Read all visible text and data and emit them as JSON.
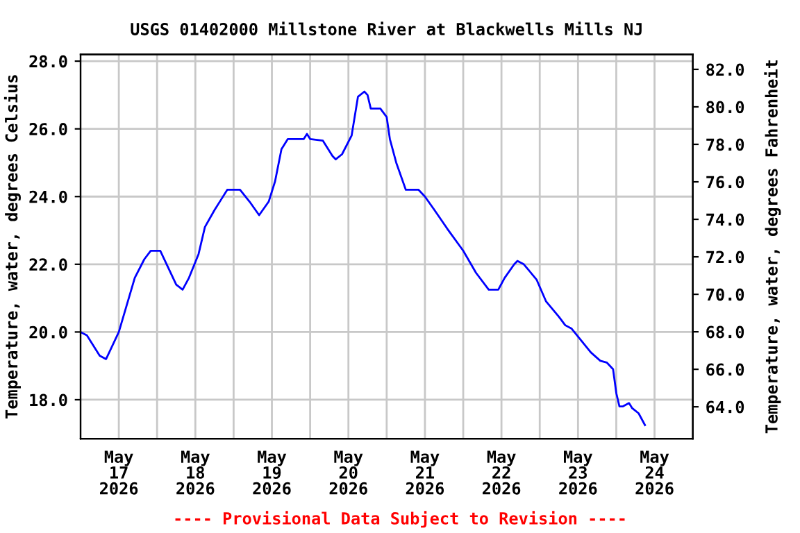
{
  "chart_data": {
    "type": "line",
    "title": "USGS 01402000 Millstone River at Blackwells Mills NJ",
    "ylabel": "Temperature, water, degrees Celsius",
    "y2label": "Temperature, water, degrees Fahrenheit",
    "annotations": [
      "---- Provisional Data Subject to Revision ----"
    ],
    "x": [
      "2026-05-17T00:00",
      "2026-05-17T02:00",
      "2026-05-17T06:00",
      "2026-05-17T08:00",
      "2026-05-17T12:00",
      "2026-05-17T17:00",
      "2026-05-17T20:00",
      "2026-05-17T22:00",
      "2026-05-18T01:00",
      "2026-05-18T03:00",
      "2026-05-18T06:00",
      "2026-05-18T08:00",
      "2026-05-18T10:00",
      "2026-05-18T13:00",
      "2026-05-18T15:00",
      "2026-05-18T18:00",
      "2026-05-18T20:00",
      "2026-05-18T22:00",
      "2026-05-19T02:00",
      "2026-05-19T05:00",
      "2026-05-19T08:00",
      "2026-05-19T11:00",
      "2026-05-19T13:00",
      "2026-05-19T15:00",
      "2026-05-19T17:00",
      "2026-05-19T22:00",
      "2026-05-19T23:00",
      "2026-05-20T00:00",
      "2026-05-20T04:00",
      "2026-05-20T07:00",
      "2026-05-20T08:00",
      "2026-05-20T10:00",
      "2026-05-20T13:00",
      "2026-05-20T15:00",
      "2026-05-20T17:00",
      "2026-05-20T18:00",
      "2026-05-20T19:00",
      "2026-05-20T22:00",
      "2026-05-21T00:00",
      "2026-05-21T01:00",
      "2026-05-21T03:00",
      "2026-05-21T06:00",
      "2026-05-21T10:00",
      "2026-05-21T12:00",
      "2026-05-21T15:00",
      "2026-05-21T19:00",
      "2026-05-22T00:00",
      "2026-05-22T04:00",
      "2026-05-22T08:00",
      "2026-05-22T11:00",
      "2026-05-22T13:00",
      "2026-05-22T16:00",
      "2026-05-22T17:00",
      "2026-05-22T19:00",
      "2026-05-22T23:00",
      "2026-05-23T02:00",
      "2026-05-23T06:00",
      "2026-05-23T08:00",
      "2026-05-23T10:00",
      "2026-05-23T13:00",
      "2026-05-23T16:00",
      "2026-05-23T19:00",
      "2026-05-23T21:00",
      "2026-05-23T23:00",
      "2026-05-24T00:00",
      "2026-05-24T01:00",
      "2026-05-24T02:00",
      "2026-05-24T04:00",
      "2026-05-24T05:00",
      "2026-05-24T07:00",
      "2026-05-24T09:00"
    ],
    "series": [
      {
        "color": "#0000ff",
        "values": [
          20.0,
          19.9,
          19.3,
          19.2,
          20.0,
          21.6,
          22.15,
          22.4,
          22.4,
          22.0,
          21.4,
          21.25,
          21.6,
          22.3,
          23.1,
          23.6,
          23.9,
          24.2,
          24.2,
          23.85,
          23.45,
          23.85,
          24.45,
          25.4,
          25.7,
          25.7,
          25.85,
          25.7,
          25.65,
          25.2,
          25.1,
          25.25,
          25.8,
          26.95,
          27.1,
          27.0,
          26.6,
          26.6,
          26.35,
          25.7,
          25.0,
          24.2,
          24.2,
          24.0,
          23.6,
          23.05,
          22.4,
          21.75,
          21.25,
          21.25,
          21.6,
          22.0,
          22.1,
          22.0,
          21.55,
          20.9,
          20.45,
          20.2,
          20.1,
          19.75,
          19.4,
          19.15,
          19.1,
          18.9,
          18.2,
          17.8,
          17.8,
          17.9,
          17.75,
          17.6,
          17.25
        ]
      }
    ],
    "xlim": [
      "2026-05-17T00:00",
      "2026-05-25T00:00"
    ],
    "xticks": [
      {
        "value": "2026-05-17T12:00",
        "label": "May\n17\n2026"
      },
      {
        "value": "2026-05-18T00:00",
        "label": null
      },
      {
        "value": "2026-05-18T12:00",
        "label": "May\n18\n2026"
      },
      {
        "value": "2026-05-19T00:00",
        "label": null
      },
      {
        "value": "2026-05-19T12:00",
        "label": "May\n19\n2026"
      },
      {
        "value": "2026-05-20T00:00",
        "label": null
      },
      {
        "value": "2026-05-20T12:00",
        "label": "May\n20\n2026"
      },
      {
        "value": "2026-05-21T00:00",
        "label": null
      },
      {
        "value": "2026-05-21T12:00",
        "label": "May\n21\n2026"
      },
      {
        "value": "2026-05-22T00:00",
        "label": null
      },
      {
        "value": "2026-05-22T12:00",
        "label": "May\n22\n2026"
      },
      {
        "value": "2026-05-23T00:00",
        "label": null
      },
      {
        "value": "2026-05-23T12:00",
        "label": "May\n23\n2026"
      },
      {
        "value": "2026-05-24T00:00",
        "label": null
      },
      {
        "value": "2026-05-24T12:00",
        "label": "May\n24\n2026"
      }
    ],
    "ylim": [
      16.85,
      28.2
    ],
    "yticks": [
      {
        "value": 18,
        "label": "18.0"
      },
      {
        "value": 20,
        "label": "20.0"
      },
      {
        "value": 22,
        "label": "22.0"
      },
      {
        "value": 24,
        "label": "24.0"
      },
      {
        "value": 26,
        "label": "26.0"
      },
      {
        "value": 28,
        "label": "28.0"
      }
    ],
    "y2lim": [
      62.3,
      82.8
    ],
    "y2ticks": [
      {
        "value": 64,
        "label": "64.0"
      },
      {
        "value": 66,
        "label": "66.0"
      },
      {
        "value": 68,
        "label": "68.0"
      },
      {
        "value": 70,
        "label": "70.0"
      },
      {
        "value": 72,
        "label": "72.0"
      },
      {
        "value": 74,
        "label": "74.0"
      },
      {
        "value": 76,
        "label": "76.0"
      },
      {
        "value": 78,
        "label": "78.0"
      },
      {
        "value": 80,
        "label": "80.0"
      },
      {
        "value": 82,
        "label": "82.0"
      }
    ],
    "grid": true
  }
}
